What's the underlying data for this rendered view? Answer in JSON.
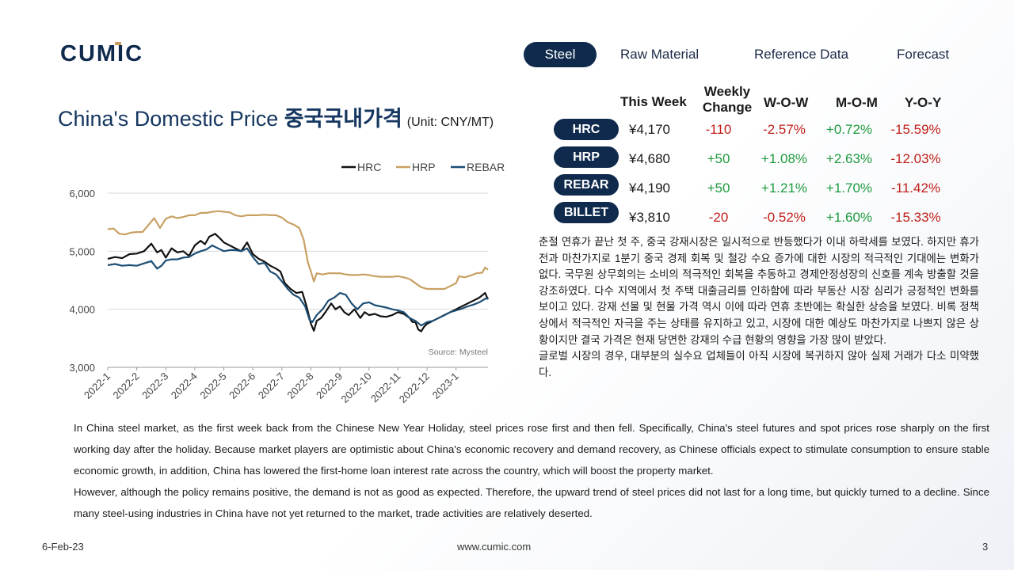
{
  "logo": "CUMIC",
  "nav": {
    "items": [
      "Steel",
      "Raw Material",
      "Reference Data",
      "Forecast"
    ],
    "active": "Steel"
  },
  "title": {
    "en": "China's Domestic Price ",
    "ko": "중국국내가격",
    "unit": "(Unit: CNY/MT)"
  },
  "table": {
    "headers": {
      "this_week": "This Week",
      "weekly_change_1": "Weekly",
      "weekly_change_2": "Change",
      "wow": "W-O-W",
      "mom": "M-O-M",
      "yoy": "Y-O-Y"
    },
    "rows": [
      {
        "product": "HRC",
        "price": "¥4,170",
        "change": "-110",
        "wow": "-2.57%",
        "mom": "+0.72%",
        "yoy": "-15.59%"
      },
      {
        "product": "HRP",
        "price": "¥4,680",
        "change": "+50",
        "wow": "+1.08%",
        "mom": "+2.63%",
        "yoy": "-12.03%"
      },
      {
        "product": "REBAR",
        "price": "¥4,190",
        "change": "+50",
        "wow": "+1.21%",
        "mom": "+1.70%",
        "yoy": "-11.42%"
      },
      {
        "product": "BILLET",
        "price": "¥3,810",
        "change": "-20",
        "wow": "-0.52%",
        "mom": "+1.60%",
        "yoy": "-15.33%"
      }
    ],
    "colors": {
      "negative": "#c0201b",
      "positive": "#1e9a3e",
      "pill": "#0f2a4d"
    }
  },
  "korean_text": {
    "p1": "춘절 연휴가 끝난 첫 주, 중국 강재시장은 일시적으로 반등했다가 이내 하락세를 보였다.  하지만 휴가 전과  마찬가지로 1분기 중국 경제 회복 및 철강 수요 증가에 대한 시장의 적극적인 기대에는 변화가 없다.  국무원 상무회의는 소비의 적극적인 회복을 추동하고 경제안정성장의 신호를 계속 방출할 것을 강조하였다. 다수 지역에서 첫 주택 대출금리를 인하함에 따라 부동산 시장 심리가 긍정적인 변화를 보이고 있다. 강재 선물 및 현물 가격 역시 이에 따라 연휴 초반에는 확실한 상승을 보였다.  비록 정책상에서 적극적인 자극을 주는 상태를 유지하고 있고, 시장에 대한 예상도 마찬가지로 나쁘지 않은 상황이지만 결국 가격은 현재 당면한 강재의 수급 현황의 영향을 가장 많이 받았다.",
    "p2": "글로벌 시장의 경우, 대부분의 실수요 업체들이 아직 시장에 복귀하지 않아 실제 거래가 다소 미약했다."
  },
  "english_text": {
    "p1": "In China steel market, as the first week back from the Chinese New Year Holiday, steel prices rose first and then fell. Specifically, China's steel futures and spot prices rose sharply on the first working day after the holiday. Because market players are optimistic about China's economic recovery and demand recovery, as Chinese officials expect to stimulate consumption to ensure stable economic growth, in addition, China has lowered the first-home loan interest rate across the country, which will boost the property market.",
    "p2": "However, although the policy remains positive, the demand is not as good as expected. Therefore, the upward trend of steel prices did not last for a long time, but quickly turned to a decline. Since many steel-using industries in China have not yet returned to the market, trade activities are relatively deserted."
  },
  "footer": {
    "date": "6-Feb-23",
    "website": "www.cumic.com",
    "page": "3"
  },
  "chart_data": {
    "type": "line",
    "title": "",
    "xlabel": "",
    "ylabel": "",
    "ylim": [
      3000,
      6000
    ],
    "yticks": [
      "3,000",
      "4,000",
      "5,000",
      "6,000"
    ],
    "x_tick_labels": [
      "2022-1",
      "2022-2",
      "2022-3",
      "2022-4",
      "2022-5",
      "2022-6",
      "2022-7",
      "2022-8",
      "2022-9",
      "2022-10",
      "2022-11",
      "2022-12",
      "2023-1"
    ],
    "x_range": [
      0,
      13.1
    ],
    "legend_position": "top",
    "source": "Source: Mysteel",
    "series": [
      {
        "name": "HRC",
        "color": "#111111",
        "points": [
          [
            0.0,
            4870
          ],
          [
            0.25,
            4900
          ],
          [
            0.5,
            4880
          ],
          [
            0.75,
            4950
          ],
          [
            1.0,
            4960
          ],
          [
            1.25,
            5000
          ],
          [
            1.5,
            5130
          ],
          [
            1.7,
            4980
          ],
          [
            1.85,
            5020
          ],
          [
            2.0,
            4890
          ],
          [
            2.2,
            5050
          ],
          [
            2.4,
            4980
          ],
          [
            2.6,
            5000
          ],
          [
            2.8,
            4920
          ],
          [
            3.0,
            5100
          ],
          [
            3.2,
            5180
          ],
          [
            3.35,
            5120
          ],
          [
            3.5,
            5250
          ],
          [
            3.7,
            5300
          ],
          [
            3.85,
            5230
          ],
          [
            4.0,
            5150
          ],
          [
            4.2,
            5100
          ],
          [
            4.4,
            5050
          ],
          [
            4.6,
            5000
          ],
          [
            4.8,
            5150
          ],
          [
            5.0,
            4950
          ],
          [
            5.2,
            4870
          ],
          [
            5.4,
            4820
          ],
          [
            5.6,
            4750
          ],
          [
            5.8,
            4700
          ],
          [
            5.95,
            4650
          ],
          [
            6.1,
            4450
          ],
          [
            6.3,
            4350
          ],
          [
            6.5,
            4280
          ],
          [
            6.7,
            4300
          ],
          [
            6.85,
            4050
          ],
          [
            7.0,
            3750
          ],
          [
            7.1,
            3630
          ],
          [
            7.2,
            3800
          ],
          [
            7.35,
            3850
          ],
          [
            7.5,
            3950
          ],
          [
            7.7,
            4100
          ],
          [
            7.85,
            4000
          ],
          [
            8.0,
            4050
          ],
          [
            8.15,
            3950
          ],
          [
            8.3,
            3900
          ],
          [
            8.5,
            4000
          ],
          [
            8.7,
            3850
          ],
          [
            8.85,
            3950
          ],
          [
            9.0,
            3900
          ],
          [
            9.2,
            3920
          ],
          [
            9.4,
            3880
          ],
          [
            9.6,
            3870
          ],
          [
            9.8,
            3900
          ],
          [
            10.0,
            3950
          ],
          [
            10.2,
            3920
          ],
          [
            10.4,
            3850
          ],
          [
            10.5,
            3780
          ],
          [
            10.6,
            3780
          ],
          [
            10.7,
            3650
          ],
          [
            10.8,
            3620
          ],
          [
            10.9,
            3700
          ],
          [
            11.0,
            3750
          ],
          [
            11.2,
            3800
          ],
          [
            11.4,
            3850
          ],
          [
            11.6,
            3900
          ],
          [
            11.8,
            3950
          ],
          [
            12.0,
            4000
          ],
          [
            12.2,
            4050
          ],
          [
            12.4,
            4100
          ],
          [
            12.6,
            4150
          ],
          [
            12.8,
            4200
          ],
          [
            13.0,
            4280
          ],
          [
            13.1,
            4170
          ]
        ]
      },
      {
        "name": "HRP",
        "color": "#c9a063",
        "points": [
          [
            0.0,
            5380
          ],
          [
            0.2,
            5390
          ],
          [
            0.4,
            5300
          ],
          [
            0.6,
            5290
          ],
          [
            0.8,
            5320
          ],
          [
            1.0,
            5330
          ],
          [
            1.2,
            5330
          ],
          [
            1.4,
            5450
          ],
          [
            1.6,
            5570
          ],
          [
            1.8,
            5400
          ],
          [
            2.0,
            5560
          ],
          [
            2.2,
            5600
          ],
          [
            2.4,
            5570
          ],
          [
            2.6,
            5590
          ],
          [
            2.8,
            5620
          ],
          [
            3.0,
            5620
          ],
          [
            3.2,
            5660
          ],
          [
            3.4,
            5660
          ],
          [
            3.6,
            5680
          ],
          [
            3.8,
            5690
          ],
          [
            4.0,
            5680
          ],
          [
            4.2,
            5670
          ],
          [
            4.4,
            5620
          ],
          [
            4.6,
            5600
          ],
          [
            4.8,
            5620
          ],
          [
            5.0,
            5620
          ],
          [
            5.2,
            5620
          ],
          [
            5.4,
            5630
          ],
          [
            5.6,
            5620
          ],
          [
            5.8,
            5620
          ],
          [
            6.0,
            5580
          ],
          [
            6.2,
            5500
          ],
          [
            6.4,
            5460
          ],
          [
            6.6,
            5400
          ],
          [
            6.75,
            5200
          ],
          [
            6.9,
            4800
          ],
          [
            7.0,
            4650
          ],
          [
            7.1,
            4480
          ],
          [
            7.2,
            4620
          ],
          [
            7.4,
            4600
          ],
          [
            7.6,
            4620
          ],
          [
            7.8,
            4620
          ],
          [
            8.0,
            4620
          ],
          [
            8.2,
            4600
          ],
          [
            8.4,
            4590
          ],
          [
            8.6,
            4590
          ],
          [
            8.8,
            4600
          ],
          [
            9.0,
            4590
          ],
          [
            9.2,
            4570
          ],
          [
            9.4,
            4560
          ],
          [
            9.6,
            4560
          ],
          [
            9.8,
            4560
          ],
          [
            10.0,
            4570
          ],
          [
            10.2,
            4550
          ],
          [
            10.4,
            4520
          ],
          [
            10.6,
            4450
          ],
          [
            10.8,
            4380
          ],
          [
            11.0,
            4350
          ],
          [
            11.2,
            4350
          ],
          [
            11.4,
            4350
          ],
          [
            11.6,
            4350
          ],
          [
            11.8,
            4400
          ],
          [
            12.0,
            4450
          ],
          [
            12.1,
            4570
          ],
          [
            12.3,
            4550
          ],
          [
            12.5,
            4580
          ],
          [
            12.7,
            4620
          ],
          [
            12.9,
            4630
          ],
          [
            13.0,
            4720
          ],
          [
            13.1,
            4680
          ]
        ]
      },
      {
        "name": "REBAR",
        "color": "#1d4e74",
        "points": [
          [
            0.0,
            4760
          ],
          [
            0.25,
            4780
          ],
          [
            0.5,
            4750
          ],
          [
            0.75,
            4760
          ],
          [
            1.0,
            4750
          ],
          [
            1.25,
            4790
          ],
          [
            1.5,
            4830
          ],
          [
            1.7,
            4700
          ],
          [
            1.85,
            4750
          ],
          [
            2.0,
            4840
          ],
          [
            2.2,
            4860
          ],
          [
            2.4,
            4860
          ],
          [
            2.6,
            4890
          ],
          [
            2.8,
            4900
          ],
          [
            3.0,
            4960
          ],
          [
            3.2,
            5000
          ],
          [
            3.4,
            5030
          ],
          [
            3.6,
            5100
          ],
          [
            3.8,
            5050
          ],
          [
            4.0,
            5000
          ],
          [
            4.2,
            5020
          ],
          [
            4.4,
            5020
          ],
          [
            4.6,
            5000
          ],
          [
            4.8,
            5050
          ],
          [
            5.0,
            4900
          ],
          [
            5.2,
            4780
          ],
          [
            5.4,
            4800
          ],
          [
            5.6,
            4650
          ],
          [
            5.8,
            4600
          ],
          [
            6.0,
            4480
          ],
          [
            6.2,
            4350
          ],
          [
            6.4,
            4250
          ],
          [
            6.6,
            4200
          ],
          [
            6.8,
            4050
          ],
          [
            6.95,
            3820
          ],
          [
            7.05,
            3780
          ],
          [
            7.2,
            3900
          ],
          [
            7.4,
            4000
          ],
          [
            7.6,
            4150
          ],
          [
            7.8,
            4200
          ],
          [
            8.0,
            4280
          ],
          [
            8.2,
            4250
          ],
          [
            8.4,
            4100
          ],
          [
            8.6,
            4000
          ],
          [
            8.8,
            4100
          ],
          [
            9.0,
            4120
          ],
          [
            9.2,
            4070
          ],
          [
            9.4,
            4050
          ],
          [
            9.6,
            4030
          ],
          [
            9.8,
            4000
          ],
          [
            10.0,
            3980
          ],
          [
            10.2,
            3950
          ],
          [
            10.4,
            3850
          ],
          [
            10.6,
            3800
          ],
          [
            10.8,
            3720
          ],
          [
            11.0,
            3780
          ],
          [
            11.2,
            3800
          ],
          [
            11.4,
            3850
          ],
          [
            11.6,
            3900
          ],
          [
            11.8,
            3950
          ],
          [
            12.0,
            3980
          ],
          [
            12.2,
            4010
          ],
          [
            12.4,
            4050
          ],
          [
            12.6,
            4080
          ],
          [
            12.8,
            4120
          ],
          [
            13.0,
            4180
          ],
          [
            13.1,
            4190
          ]
        ]
      }
    ]
  }
}
